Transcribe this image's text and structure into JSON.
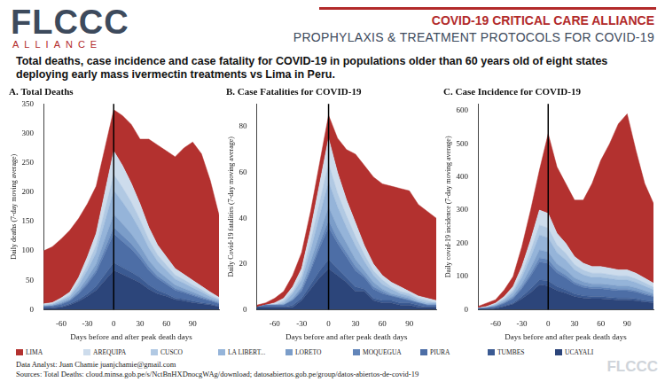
{
  "header": {
    "logo": "FLCCC",
    "logo_sub": "ALLIANCE",
    "line1": "COVID-19 CRITICAL CARE ALLIANCE",
    "line2": "PROPHYLAXIS & TREATMENT PROTOCOLS FOR COVID-19"
  },
  "title": "Total deaths, case incidence and case fatality for COVID-19 in populations older than 60 years old of eight states deploying early mass ivermectin treatments vs Lima in Peru.",
  "footer": {
    "analyst": "Data Analyst: Juan Chamie juanjchamie@gmail.com",
    "sources": "Sources: Total Deaths: cloud.minsa.gob.pe/s/NctBnHXDnocgWAg/download; datosabiertos.gob.pe/group/datos-abiertos-de-covid-19",
    "watermark": "FLCCC"
  },
  "chart_data": [
    {
      "type": "area",
      "stacked": true,
      "grid": false,
      "legend": "bottom",
      "title": "A. Total Deaths",
      "x_label": "Days before and after peak death days",
      "y_label": "Daily deaths (7-day moving average)",
      "x": [
        -80,
        -70,
        -60,
        -50,
        -40,
        -30,
        -20,
        -10,
        0,
        10,
        20,
        30,
        40,
        50,
        60,
        70,
        80,
        90,
        100,
        110,
        120
      ],
      "xlim": [
        -80,
        120
      ],
      "xticks": [
        -60,
        -30,
        0,
        30,
        60,
        90
      ],
      "ylim": [
        0,
        350
      ],
      "yticks": [
        0,
        50,
        100,
        150,
        200,
        250,
        300,
        350
      ],
      "reference_line_x": 0,
      "series": [
        {
          "name": "LIMA",
          "color": "#b3312f",
          "values": [
            90,
            95,
            100,
            105,
            100,
            90,
            80,
            75,
            70,
            85,
            100,
            110,
            150,
            170,
            180,
            190,
            215,
            235,
            225,
            190,
            140
          ]
        },
        {
          "name": "AREQUIPA",
          "color": "#cddcec",
          "values": [
            2,
            2,
            3,
            5,
            8,
            14,
            20,
            30,
            40,
            37,
            32,
            27,
            21,
            17,
            14,
            11,
            9,
            8,
            6,
            5,
            3
          ]
        },
        {
          "name": "CUSCO",
          "color": "#b1c9e3",
          "values": [
            1,
            1,
            2,
            3,
            6,
            9,
            13,
            20,
            27,
            25,
            22,
            18,
            14,
            11,
            9,
            7,
            6,
            5,
            4,
            3,
            2
          ]
        },
        {
          "name": "LA LIBERT...",
          "color": "#95b4d9",
          "values": [
            1,
            2,
            3,
            4,
            8,
            13,
            19,
            30,
            41,
            37,
            32,
            27,
            21,
            16,
            13,
            10,
            9,
            7,
            6,
            4,
            3
          ]
        },
        {
          "name": "LORETO",
          "color": "#7b9dc9",
          "values": [
            1,
            1,
            2,
            2,
            4,
            7,
            10,
            16,
            22,
            20,
            17,
            14,
            11,
            9,
            7,
            6,
            5,
            4,
            3,
            2,
            2
          ]
        },
        {
          "name": "MOQUEGUA",
          "color": "#6285b9",
          "values": [
            0,
            0,
            1,
            1,
            2,
            4,
            5,
            8,
            11,
            10,
            9,
            7,
            6,
            4,
            4,
            3,
            2,
            2,
            2,
            1,
            1
          ]
        },
        {
          "name": "PIURA",
          "color": "#4d6ea6",
          "values": [
            2,
            2,
            4,
            5,
            10,
            16,
            23,
            36,
            49,
            44,
            39,
            32,
            25,
            20,
            16,
            13,
            11,
            9,
            7,
            5,
            4
          ]
        },
        {
          "name": "TUMBES",
          "color": "#3b5a92",
          "values": [
            1,
            1,
            1,
            2,
            3,
            4,
            7,
            10,
            13,
            12,
            11,
            9,
            7,
            6,
            4,
            3,
            3,
            3,
            2,
            2,
            1
          ]
        },
        {
          "name": "UCAYALI",
          "color": "#2c457a",
          "values": [
            2,
            3,
            4,
            8,
            14,
            23,
            33,
            50,
            67,
            60,
            53,
            46,
            35,
            27,
            23,
            17,
            15,
            12,
            10,
            8,
            5
          ]
        }
      ]
    },
    {
      "type": "area",
      "stacked": true,
      "grid": false,
      "title": "B. Case Fatalities for COVID-19",
      "x_label": "Days before and after peak death days",
      "y_label": "Daily Covid-19 fatalities (7-day moving average)",
      "x": [
        -80,
        -70,
        -60,
        -50,
        -40,
        -30,
        -20,
        -10,
        0,
        10,
        20,
        30,
        40,
        50,
        60,
        70,
        80,
        90,
        100,
        110,
        120
      ],
      "xlim": [
        -80,
        120
      ],
      "xticks": [
        -60,
        -30,
        0,
        30,
        60,
        90
      ],
      "ylim": [
        0,
        90
      ],
      "yticks": [
        0,
        20,
        40,
        60,
        80
      ],
      "reference_line_x": 0,
      "series": [
        {
          "name": "LIMA",
          "color": "#b3312f",
          "values": [
            1,
            1,
            2,
            3,
            5,
            7,
            8,
            9,
            10,
            15,
            22,
            30,
            35,
            38,
            40,
            42,
            43,
            44,
            40,
            38,
            36
          ]
        },
        {
          "name": "AREQUIPA",
          "color": "#cddcec",
          "values": [
            0,
            0,
            1,
            1,
            2,
            3,
            5,
            8,
            11,
            9,
            7,
            6,
            4,
            3,
            2,
            2,
            2,
            1,
            1,
            1,
            1
          ]
        },
        {
          "name": "CUSCO",
          "color": "#b1c9e3",
          "values": [
            0,
            0,
            0,
            1,
            1,
            2,
            4,
            6,
            8,
            6,
            5,
            4,
            3,
            2,
            2,
            1,
            1,
            1,
            1,
            1,
            0
          ]
        },
        {
          "name": "LA LIBERT...",
          "color": "#95b4d9",
          "values": [
            0,
            0,
            0,
            1,
            2,
            3,
            5,
            8,
            11,
            9,
            7,
            6,
            4,
            3,
            2,
            2,
            1,
            1,
            1,
            1,
            1
          ]
        },
        {
          "name": "LORETO",
          "color": "#7b9dc9",
          "values": [
            0,
            0,
            0,
            0,
            1,
            1,
            3,
            4,
            6,
            5,
            4,
            3,
            2,
            2,
            1,
            1,
            1,
            1,
            0,
            0,
            0
          ]
        },
        {
          "name": "MOQUEGUA",
          "color": "#6285b9",
          "values": [
            0,
            0,
            0,
            0,
            0,
            1,
            1,
            2,
            3,
            2,
            2,
            2,
            1,
            1,
            1,
            0,
            0,
            0,
            0,
            0,
            0
          ]
        },
        {
          "name": "PIURA",
          "color": "#4d6ea6",
          "values": [
            0,
            1,
            1,
            1,
            2,
            3,
            6,
            10,
            14,
            11,
            9,
            7,
            5,
            4,
            3,
            2,
            2,
            1,
            1,
            1,
            1
          ]
        },
        {
          "name": "TUMBES",
          "color": "#3b5a92",
          "values": [
            0,
            0,
            0,
            0,
            1,
            1,
            2,
            3,
            4,
            3,
            2,
            2,
            1,
            1,
            1,
            1,
            1,
            1,
            1,
            0,
            0
          ]
        },
        {
          "name": "UCAYALI",
          "color": "#2c457a",
          "values": [
            1,
            1,
            1,
            1,
            1,
            4,
            9,
            14,
            18,
            15,
            12,
            8,
            8,
            4,
            3,
            3,
            2,
            2,
            1,
            1,
            1
          ]
        }
      ]
    },
    {
      "type": "area",
      "stacked": true,
      "grid": false,
      "title": "C. Case Incidence for COVID-19",
      "x_label": "Days before and after peak death days",
      "y_label": "Daily covid-19 incidence (7-day moving average)",
      "x": [
        -80,
        -70,
        -60,
        -50,
        -40,
        -30,
        -20,
        -10,
        0,
        10,
        20,
        30,
        40,
        50,
        60,
        70,
        80,
        90,
        100,
        110,
        120
      ],
      "xlim": [
        -80,
        120
      ],
      "xticks": [
        -60,
        -30,
        0,
        30,
        60,
        90
      ],
      "ylim": [
        0,
        620
      ],
      "yticks": [
        0,
        100,
        200,
        300,
        400,
        500,
        600
      ],
      "reference_line_x": 0,
      "series": [
        {
          "name": "LIMA",
          "color": "#b3312f",
          "values": [
            5,
            10,
            10,
            20,
            30,
            60,
            90,
            120,
            240,
            200,
            180,
            170,
            190,
            250,
            320,
            375,
            440,
            470,
            370,
            285,
            240
          ]
        },
        {
          "name": "AREQUIPA",
          "color": "#cddcec",
          "values": [
            1,
            2,
            3,
            6,
            11,
            20,
            32,
            45,
            44,
            35,
            30,
            24,
            21,
            20,
            20,
            19,
            18,
            18,
            17,
            14,
            12
          ]
        },
        {
          "name": "CUSCO",
          "color": "#b1c9e3",
          "values": [
            0,
            1,
            2,
            4,
            7,
            13,
            21,
            30,
            29,
            23,
            20,
            16,
            14,
            13,
            13,
            12,
            12,
            12,
            11,
            10,
            8
          ]
        },
        {
          "name": "LA LIBERT...",
          "color": "#95b4d9",
          "values": [
            1,
            1,
            3,
            6,
            10,
            19,
            31,
            45,
            43,
            34,
            30,
            24,
            21,
            19,
            19,
            19,
            18,
            18,
            16,
            14,
            12
          ]
        },
        {
          "name": "LORETO",
          "color": "#7b9dc9",
          "values": [
            0,
            1,
            2,
            3,
            6,
            10,
            17,
            24,
            23,
            18,
            16,
            13,
            11,
            10,
            10,
            10,
            10,
            10,
            9,
            8,
            6
          ]
        },
        {
          "name": "MOQUEGUA",
          "color": "#6285b9",
          "values": [
            0,
            0,
            1,
            2,
            3,
            5,
            8,
            12,
            12,
            9,
            8,
            6,
            6,
            5,
            5,
            5,
            5,
            5,
            4,
            4,
            3
          ]
        },
        {
          "name": "PIURA",
          "color": "#4d6ea6",
          "values": [
            1,
            2,
            4,
            7,
            13,
            23,
            38,
            54,
            52,
            41,
            36,
            29,
            25,
            23,
            23,
            23,
            22,
            22,
            20,
            17,
            14
          ]
        },
        {
          "name": "TUMBES",
          "color": "#3b5a92",
          "values": [
            0,
            1,
            1,
            2,
            3,
            7,
            11,
            15,
            15,
            12,
            10,
            8,
            7,
            7,
            7,
            6,
            6,
            6,
            6,
            5,
            4
          ]
        },
        {
          "name": "UCAYALI",
          "color": "#2c457a",
          "values": [
            2,
            2,
            4,
            10,
            17,
            33,
            52,
            75,
            72,
            58,
            50,
            40,
            35,
            33,
            33,
            31,
            29,
            29,
            27,
            23,
            21
          ]
        }
      ]
    }
  ]
}
